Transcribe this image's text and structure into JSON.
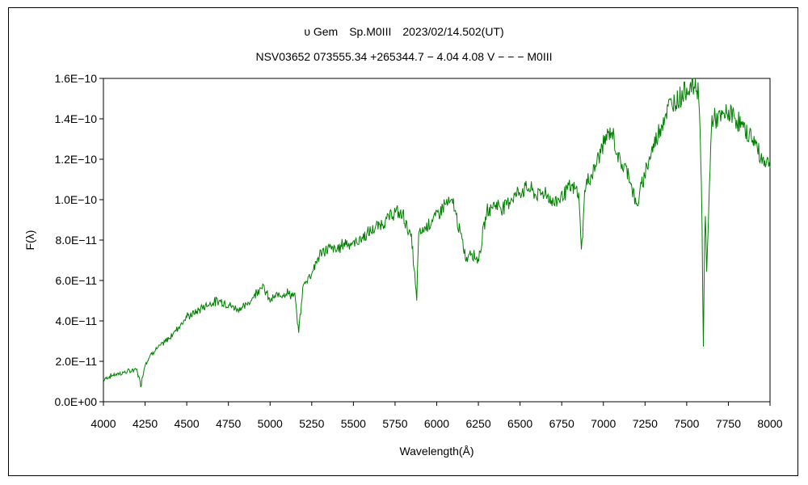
{
  "chart_data": {
    "type": "line",
    "title": "υ Gem　Sp.M0III　2023/02/14.502(UT)",
    "subtitle": "NSV03652 073555.34 +265344.7 − 4.04 4.08 V − − − M0III",
    "xlabel": "Wavelength(Å)",
    "ylabel": "F(λ)",
    "xlim": [
      4000,
      8000
    ],
    "ylim": [
      0,
      1.6e-10
    ],
    "x_ticks": [
      4000,
      4250,
      4500,
      4750,
      5000,
      5250,
      5500,
      5750,
      6000,
      6250,
      6500,
      6750,
      7000,
      7250,
      7500,
      7750,
      8000
    ],
    "x_tick_labels": [
      "4000",
      "4250",
      "4500",
      "4750",
      "5000",
      "5250",
      "5500",
      "5750",
      "6000",
      "6250",
      "6500",
      "6750",
      "7000",
      "7250",
      "7500",
      "7750",
      "8000"
    ],
    "y_ticks": [
      0,
      2e-11,
      4e-11,
      6e-11,
      8e-11,
      1e-10,
      1.2e-10,
      1.4e-10,
      1.6e-10
    ],
    "y_tick_labels": [
      "0.0E+00",
      "2.0E−11",
      "4.0E−11",
      "6.0E−11",
      "8.0E−11",
      "1.0E−10",
      "1.2E−10",
      "1.4E−10",
      "1.6E−10"
    ],
    "grid": false,
    "legend": "none",
    "color": "#008000",
    "series": [
      {
        "x": [
          4000,
          4050,
          4100,
          4150,
          4200,
          4225,
          4250,
          4300,
          4350,
          4400,
          4450,
          4500,
          4550,
          4600,
          4650,
          4700,
          4750,
          4800,
          4850,
          4900,
          4950,
          5000,
          5050,
          5100,
          5150,
          5170,
          5200,
          5250,
          5300,
          5350,
          5400,
          5450,
          5500,
          5550,
          5600,
          5650,
          5700,
          5750,
          5800,
          5850,
          5880,
          5890,
          5910,
          5950,
          6000,
          6050,
          6100,
          6150,
          6180,
          6200,
          6250,
          6300,
          6350,
          6400,
          6450,
          6500,
          6550,
          6600,
          6650,
          6700,
          6750,
          6800,
          6850,
          6870,
          6890,
          6950,
          7000,
          7050,
          7100,
          7150,
          7200,
          7250,
          7300,
          7350,
          7400,
          7450,
          7500,
          7550,
          7575,
          7590,
          7600,
          7610,
          7620,
          7630,
          7650,
          7700,
          7750,
          7800,
          7850,
          7900,
          7950,
          8000
        ],
        "y": [
          1.1e-11,
          1.3e-11,
          1.4e-11,
          1.5e-11,
          1.6e-11,
          8e-12,
          1.9e-11,
          2.5e-11,
          2.8e-11,
          3.2e-11,
          3.7e-11,
          4.2e-11,
          4.4e-11,
          4.7e-11,
          4.9e-11,
          5e-11,
          4.8e-11,
          4.6e-11,
          4.7e-11,
          5.2e-11,
          5.8e-11,
          5e-11,
          5.3e-11,
          5.4e-11,
          5.2e-11,
          3.4e-11,
          5.8e-11,
          6.4e-11,
          7.3e-11,
          7.6e-11,
          7.5e-11,
          7.9e-11,
          7.8e-11,
          8.1e-11,
          8.4e-11,
          8.7e-11,
          9e-11,
          9.4e-11,
          9.2e-11,
          8e-11,
          5e-11,
          8.2e-11,
          8.4e-11,
          8.8e-11,
          9.2e-11,
          9.8e-11,
          9.8e-11,
          8e-11,
          7e-11,
          7.5e-11,
          7e-11,
          9.4e-11,
          9.8e-11,
          9.6e-11,
          1.01e-10,
          1.04e-10,
          1.06e-10,
          1.02e-10,
          1.04e-10,
          9.8e-11,
          1.02e-10,
          1.06e-10,
          1.04e-10,
          7.5e-11,
          1.06e-10,
          1.16e-10,
          1.28e-10,
          1.34e-10,
          1.18e-10,
          1.14e-10,
          9.6e-11,
          1.14e-10,
          1.26e-10,
          1.38e-10,
          1.47e-10,
          1.5e-10,
          1.55e-10,
          1.57e-10,
          1.52e-10,
          1e-10,
          2.6e-11,
          9.5e-11,
          6.6e-11,
          9e-11,
          1.4e-10,
          1.4e-10,
          1.43e-10,
          1.4e-10,
          1.34e-10,
          1.3e-10,
          1.2e-10,
          1.18e-10
        ]
      }
    ]
  }
}
